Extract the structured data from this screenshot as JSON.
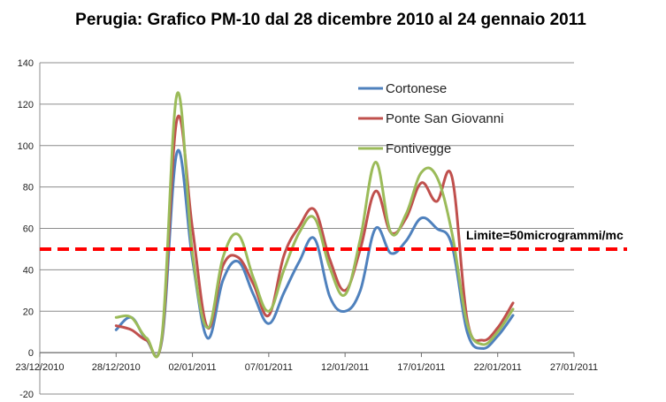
{
  "chart_data": {
    "type": "line",
    "title": "Perugia: Grafico PM-10 dal  28 dicembre 2010 al 24 gennaio 2011",
    "xlabel": "",
    "ylabel": "",
    "ylim": [
      -20,
      140
    ],
    "yticks": [
      "-20",
      "0",
      "20",
      "40",
      "60",
      "80",
      "100",
      "120",
      "140"
    ],
    "xticks": [
      "23/12/2010",
      "28/12/2010",
      "02/01/2011",
      "07/01/2011",
      "12/01/2011",
      "17/01/2011",
      "22/01/2011",
      "27/01/2011"
    ],
    "x": [
      "28/12/2010",
      "29/12/2010",
      "30/12/2010",
      "31/12/2010",
      "01/01/2011",
      "02/01/2011",
      "03/01/2011",
      "04/01/2011",
      "05/01/2011",
      "06/01/2011",
      "07/01/2011",
      "08/01/2011",
      "09/01/2011",
      "10/01/2011",
      "11/01/2011",
      "12/01/2011",
      "13/01/2011",
      "14/01/2011",
      "15/01/2011",
      "16/01/2011",
      "17/01/2011",
      "18/01/2011",
      "19/01/2011",
      "20/01/2011",
      "21/01/2011",
      "22/01/2011",
      "23/01/2011"
    ],
    "series": [
      {
        "name": "Cortonese",
        "color": "#4F81BD",
        "values": [
          11,
          17,
          6,
          6,
          97,
          45,
          7,
          35,
          44,
          28,
          14,
          29,
          44,
          55,
          27,
          20,
          30,
          60,
          48,
          54,
          65,
          60,
          52,
          10,
          2,
          8,
          18
        ]
      },
      {
        "name": "Ponte San Giovanni",
        "color": "#C0504D",
        "values": [
          13,
          11,
          6,
          7,
          113,
          60,
          12,
          42,
          46,
          33,
          18,
          47,
          61,
          69,
          45,
          30,
          50,
          78,
          58,
          65,
          82,
          73,
          85,
          16,
          6,
          12,
          24
        ]
      },
      {
        "name": "Fontivegge",
        "color": "#9BBB59",
        "values": [
          17,
          17,
          7,
          8,
          125,
          48,
          12,
          46,
          57,
          36,
          20,
          40,
          58,
          65,
          41,
          28,
          55,
          92,
          58,
          67,
          87,
          85,
          58,
          14,
          4,
          10,
          21
        ]
      }
    ],
    "limit": {
      "value": 50,
      "label": "Limite=50microgrammi/mc",
      "color": "#FF0000"
    },
    "legend": "top-right inside plot",
    "grid": "horizontal"
  }
}
